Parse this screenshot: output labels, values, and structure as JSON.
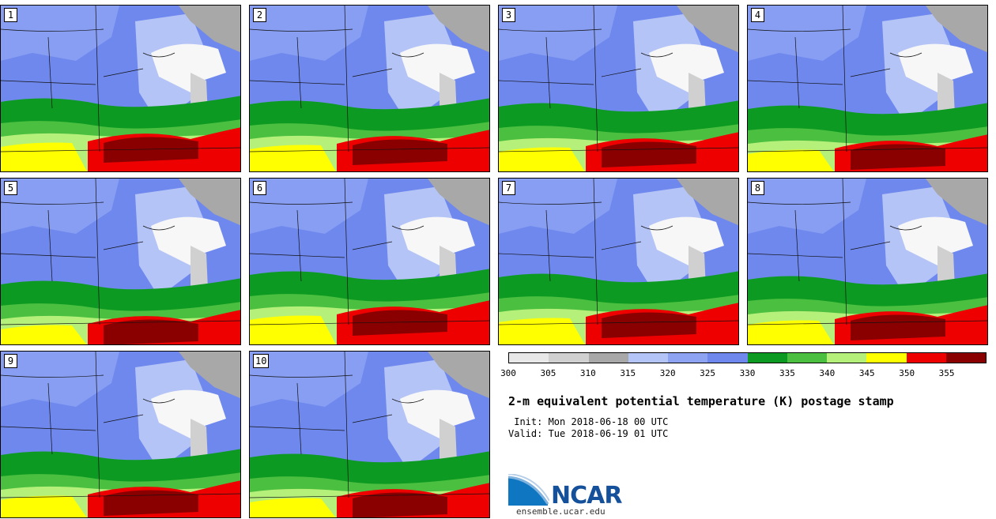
{
  "panels": [
    {
      "label": "1"
    },
    {
      "label": "2"
    },
    {
      "label": "3"
    },
    {
      "label": "4"
    },
    {
      "label": "5"
    },
    {
      "label": "6"
    },
    {
      "label": "7"
    },
    {
      "label": "8"
    },
    {
      "label": "9"
    },
    {
      "label": "10"
    }
  ],
  "colorbar": {
    "ticks": [
      "300",
      "305",
      "310",
      "315",
      "320",
      "325",
      "330",
      "335",
      "340",
      "345",
      "350",
      "355"
    ],
    "colors": [
      "#e8e8e8",
      "#d0d0d0",
      "#a8a8a8",
      "#b5c4f7",
      "#8ea4f2",
      "#6f88ee",
      "#0d9a22",
      "#4bbf3f",
      "#b4f07a",
      "#ffff00",
      "#ee0000",
      "#8a0000"
    ]
  },
  "title": "2-m equivalent potential temperature (K) postage stamp",
  "init": " Init: Mon 2018-06-18 00 UTC",
  "valid": "Valid: Tue 2018-06-19 01 UTC",
  "logo": {
    "text": "NCAR",
    "url": "ensemble.ucar.edu"
  }
}
